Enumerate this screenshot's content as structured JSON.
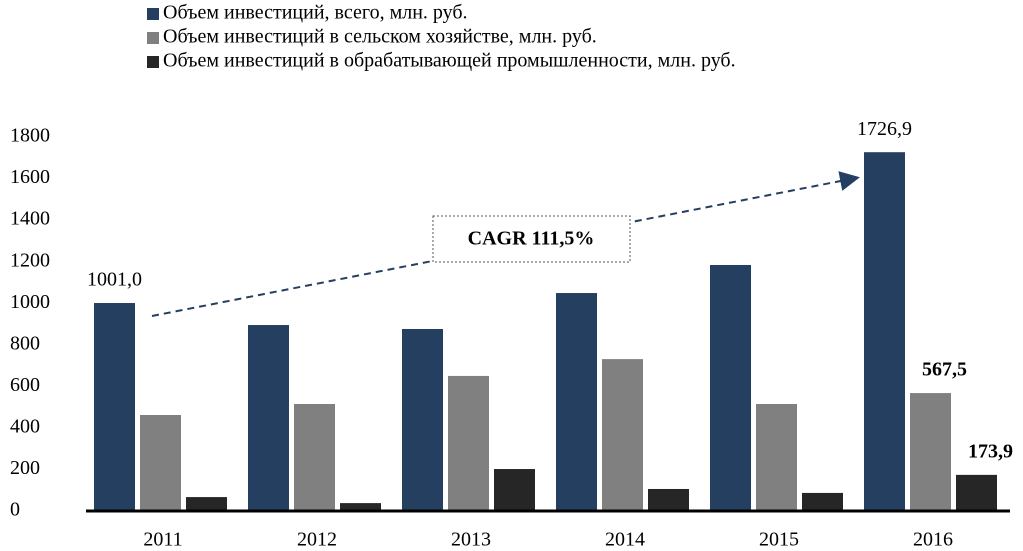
{
  "chart_data": {
    "type": "bar",
    "annotation": "CAGR 111,5%",
    "categories": [
      "2011",
      "2012",
      "2013",
      "2014",
      "2015",
      "2016"
    ],
    "series": [
      {
        "name": "Объем инвестиций, всего, млн. руб.",
        "color": "#243f60",
        "values": [
          1001.0,
          895,
          876,
          1049,
          1184,
          1726.9
        ],
        "value_labels": [
          "1001,0",
          null,
          null,
          null,
          null,
          "1726,9"
        ]
      },
      {
        "name": "Объем инвестиций в сельском хозяйстве, млн. руб.",
        "color": "#808080",
        "values": [
          462,
          515,
          650,
          731,
          515,
          567.5
        ],
        "value_labels": [
          null,
          null,
          null,
          null,
          null,
          "567,5"
        ]
      },
      {
        "name": "Объем инвестиций в обрабатывающей промышленности, млн. руб.",
        "color": "#262626",
        "values": [
          67,
          38,
          202,
          106,
          87,
          173.9
        ],
        "value_labels": [
          null,
          null,
          null,
          null,
          null,
          "173,9"
        ]
      }
    ],
    "ylim": [
      0,
      1800
    ],
    "yticks": [
      0,
      200,
      400,
      600,
      800,
      1000,
      1200,
      1400,
      1600,
      1800
    ],
    "grid": false
  }
}
